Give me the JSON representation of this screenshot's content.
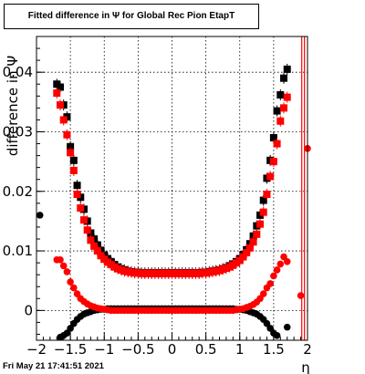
{
  "chart_data": {
    "type": "scatter",
    "title": "Fitted difference in  Ψ  for Global Rec Pion EtapT",
    "xlabel": "η",
    "ylabel": "difference in  Ψ",
    "xlim": [
      -2.0,
      2.0
    ],
    "ylim": [
      -0.005,
      0.046
    ],
    "x_ticks": [
      -2,
      -1.5,
      -1,
      -0.5,
      0,
      0.5,
      1,
      1.5,
      2
    ],
    "x_tick_labels": [
      "−2",
      "−1.5",
      "−1",
      "−0.5",
      "0",
      "0.5",
      "1",
      "1.5",
      "2"
    ],
    "y_ticks": [
      0,
      0.01,
      0.02,
      0.03,
      0.04
    ],
    "y_tick_labels": [
      "0",
      "0.01",
      "0.02",
      "0.03",
      "0.04"
    ],
    "grid": true,
    "markers": {
      "black_square": "#000000",
      "red_square": "#ff0000",
      "black_circle": "#000000",
      "red_circle": "#ff0000",
      "vline": "#ff0000"
    },
    "vlines": [
      1.915,
      1.955
    ],
    "series": [
      {
        "marker": "square",
        "color": "#000000",
        "x": [
          -1.7,
          -1.65,
          -1.6,
          -1.55,
          -1.5,
          -1.45,
          -1.4,
          -1.35,
          -1.3,
          -1.25,
          -1.2,
          -1.15,
          -1.1,
          -1.05,
          -1.0,
          -0.95,
          -0.9,
          -0.85,
          -0.8,
          -0.75,
          -0.7,
          -0.65,
          -0.6,
          -0.55,
          -0.5,
          -0.45,
          -0.4,
          -0.35,
          -0.3,
          -0.25,
          -0.2,
          -0.15,
          -0.1,
          -0.05,
          0.0,
          0.05,
          0.1,
          0.15,
          0.2,
          0.25,
          0.3,
          0.35,
          0.4,
          0.45,
          0.5,
          0.55,
          0.6,
          0.65,
          0.7,
          0.75,
          0.8,
          0.85,
          0.9,
          0.95,
          1.0,
          1.05,
          1.1,
          1.15,
          1.2,
          1.25,
          1.3,
          1.35,
          1.4,
          1.45,
          1.5,
          1.55,
          1.6,
          1.65,
          1.7
        ],
        "y": [
          0.038,
          0.0375,
          0.0345,
          0.0325,
          0.0275,
          0.0252,
          0.021,
          0.019,
          0.017,
          0.015,
          0.013,
          0.012,
          0.011,
          0.0101,
          0.0093,
          0.0087,
          0.0082,
          0.0077,
          0.0073,
          0.007,
          0.0068,
          0.0066,
          0.0065,
          0.0064,
          0.0064,
          0.0063,
          0.0063,
          0.0063,
          0.0063,
          0.0063,
          0.0063,
          0.0063,
          0.0063,
          0.0063,
          0.0063,
          0.0063,
          0.0063,
          0.0063,
          0.0063,
          0.0063,
          0.0063,
          0.0063,
          0.0063,
          0.0064,
          0.0064,
          0.0065,
          0.0066,
          0.0067,
          0.0068,
          0.007,
          0.0072,
          0.0075,
          0.0078,
          0.0082,
          0.0087,
          0.0094,
          0.0102,
          0.0112,
          0.0125,
          0.0142,
          0.016,
          0.0185,
          0.0222,
          0.0252,
          0.029,
          0.0335,
          0.0362,
          0.039,
          0.0405
        ]
      },
      {
        "marker": "square",
        "color": "#ff0000",
        "x": [
          -1.7,
          -1.65,
          -1.6,
          -1.55,
          -1.5,
          -1.45,
          -1.4,
          -1.35,
          -1.3,
          -1.25,
          -1.2,
          -1.15,
          -1.1,
          -1.05,
          -1.0,
          -0.95,
          -0.9,
          -0.85,
          -0.8,
          -0.75,
          -0.7,
          -0.65,
          -0.6,
          -0.55,
          -0.5,
          -0.45,
          -0.4,
          -0.35,
          -0.3,
          -0.25,
          -0.2,
          -0.15,
          -0.1,
          -0.05,
          0.0,
          0.05,
          0.1,
          0.15,
          0.2,
          0.25,
          0.3,
          0.35,
          0.4,
          0.45,
          0.5,
          0.55,
          0.6,
          0.65,
          0.7,
          0.75,
          0.8,
          0.85,
          0.9,
          0.95,
          1.0,
          1.05,
          1.1,
          1.15,
          1.2,
          1.25,
          1.3,
          1.35,
          1.4,
          1.45,
          1.5,
          1.55,
          1.6,
          1.65,
          1.7
        ],
        "y": [
          0.0365,
          0.0345,
          0.032,
          0.0295,
          0.0265,
          0.0235,
          0.0195,
          0.0172,
          0.0152,
          0.0135,
          0.0118,
          0.0108,
          0.01,
          0.0092,
          0.0086,
          0.0081,
          0.0077,
          0.0073,
          0.007,
          0.0068,
          0.0066,
          0.0065,
          0.0064,
          0.0063,
          0.0063,
          0.0062,
          0.0062,
          0.0062,
          0.0062,
          0.0062,
          0.0062,
          0.0062,
          0.0062,
          0.0062,
          0.0062,
          0.0062,
          0.0062,
          0.0062,
          0.0062,
          0.0062,
          0.0062,
          0.0062,
          0.0062,
          0.0063,
          0.0063,
          0.0064,
          0.0065,
          0.0066,
          0.0067,
          0.0069,
          0.0071,
          0.0073,
          0.0076,
          0.008,
          0.0084,
          0.009,
          0.0097,
          0.0105,
          0.0115,
          0.0128,
          0.0145,
          0.0165,
          0.0195,
          0.0225,
          0.025,
          0.028,
          0.0318,
          0.034,
          0.0358
        ]
      },
      {
        "marker": "circle",
        "color": "#000000",
        "x": [
          -1.95,
          -1.65,
          -1.6,
          -1.55,
          -1.5,
          -1.45,
          -1.4,
          -1.35,
          -1.3,
          -1.25,
          -1.2,
          -1.15,
          -1.1,
          -1.05,
          -1.0,
          -0.95,
          -0.9,
          -0.85,
          -0.8,
          -0.75,
          -0.7,
          -0.65,
          -0.6,
          -0.55,
          -0.5,
          -0.45,
          -0.4,
          -0.35,
          -0.3,
          -0.25,
          -0.2,
          -0.15,
          -0.1,
          -0.05,
          0.0,
          0.05,
          0.1,
          0.15,
          0.2,
          0.25,
          0.3,
          0.35,
          0.4,
          0.45,
          0.5,
          0.55,
          0.6,
          0.65,
          0.7,
          0.75,
          0.8,
          0.85,
          0.9,
          0.95,
          1.0,
          1.05,
          1.1,
          1.15,
          1.2,
          1.25,
          1.3,
          1.35,
          1.4,
          1.45,
          1.5,
          1.55,
          1.7
        ],
        "y": [
          0.016,
          -0.0045,
          -0.0042,
          -0.0038,
          -0.003,
          -0.0022,
          -0.0015,
          -0.001,
          -0.0006,
          -0.0004,
          -0.0002,
          0.0,
          0.0001,
          0.0002,
          0.0002,
          0.0003,
          0.0003,
          0.0003,
          0.0003,
          0.0003,
          0.0003,
          0.0003,
          0.0003,
          0.0003,
          0.0003,
          0.0003,
          0.0003,
          0.0003,
          0.0003,
          0.0003,
          0.0003,
          0.0003,
          0.0003,
          0.0003,
          0.0003,
          0.0003,
          0.0003,
          0.0003,
          0.0003,
          0.0003,
          0.0003,
          0.0003,
          0.0003,
          0.0003,
          0.0003,
          0.0003,
          0.0003,
          0.0003,
          0.0003,
          0.0003,
          0.0003,
          0.0003,
          0.0003,
          0.0002,
          0.0002,
          0.0001,
          0.0,
          -0.0002,
          -0.0004,
          -0.0006,
          -0.001,
          -0.0015,
          -0.0022,
          -0.003,
          -0.0038,
          -0.0042,
          -0.0028
        ]
      },
      {
        "marker": "circle",
        "color": "#ff0000",
        "x": [
          -1.7,
          -1.65,
          -1.6,
          -1.55,
          -1.5,
          -1.45,
          -1.4,
          -1.35,
          -1.3,
          -1.25,
          -1.2,
          -1.15,
          -1.1,
          -1.05,
          -1.0,
          -0.95,
          -0.9,
          -0.85,
          -0.8,
          -0.75,
          -0.7,
          -0.65,
          -0.6,
          -0.55,
          -0.5,
          -0.45,
          -0.4,
          -0.35,
          -0.3,
          -0.25,
          -0.2,
          -0.15,
          -0.1,
          -0.05,
          0.0,
          0.05,
          0.1,
          0.15,
          0.2,
          0.25,
          0.3,
          0.35,
          0.4,
          0.45,
          0.5,
          0.55,
          0.6,
          0.65,
          0.7,
          0.75,
          0.8,
          0.85,
          0.9,
          0.95,
          1.0,
          1.05,
          1.1,
          1.15,
          1.2,
          1.25,
          1.3,
          1.35,
          1.4,
          1.45,
          1.5,
          1.55,
          1.6,
          1.65,
          1.7,
          1.9,
          2.0
        ],
        "y": [
          0.0085,
          0.0085,
          0.0075,
          0.0065,
          0.0048,
          0.0038,
          0.0028,
          0.002,
          0.0015,
          0.0011,
          0.0008,
          0.0006,
          0.0004,
          0.0003,
          0.0002,
          0.0001,
          0.0,
          0.0,
          0.0,
          0.0,
          0.0,
          0.0,
          0.0,
          0.0,
          0.0,
          0.0,
          0.0,
          0.0,
          0.0,
          0.0,
          0.0,
          0.0,
          0.0,
          0.0,
          0.0,
          0.0,
          0.0,
          0.0,
          0.0,
          0.0,
          0.0,
          0.0,
          0.0,
          0.0,
          0.0,
          0.0,
          0.0,
          0.0,
          0.0,
          0.0,
          0.0,
          0.0,
          0.0,
          0.0001,
          0.0002,
          0.0003,
          0.0005,
          0.0007,
          0.001,
          0.0014,
          0.002,
          0.0028,
          0.0038,
          0.0045,
          0.0058,
          0.0068,
          0.0078,
          0.009,
          0.0082,
          0.0025,
          0.0272
        ]
      }
    ]
  },
  "footer": {
    "timestamp": "Fri May 21 17:41:51 2021"
  }
}
